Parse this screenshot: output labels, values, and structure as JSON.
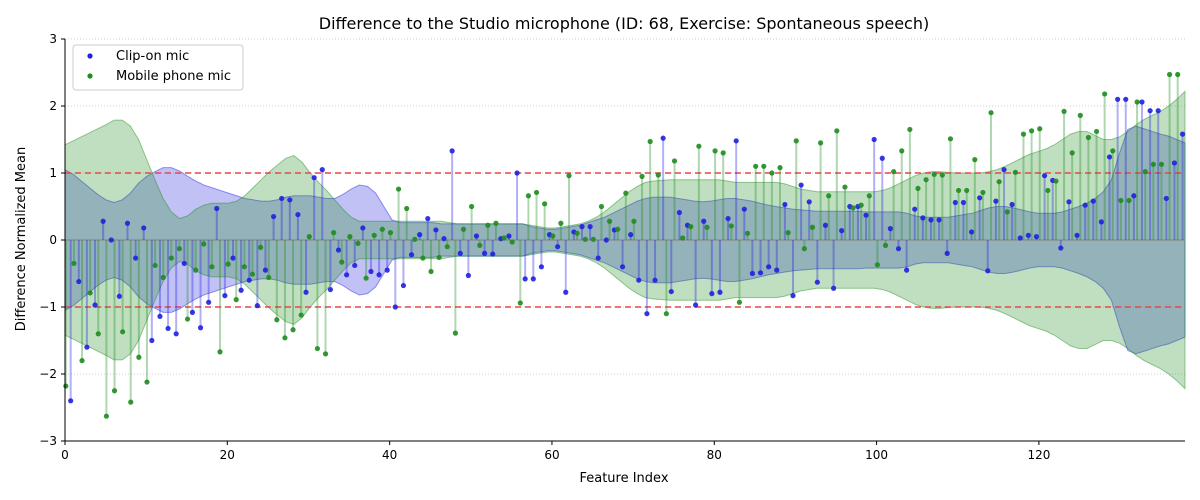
{
  "chart_data": {
    "type": "stem",
    "title": "Difference to the Studio microphone (ID: 68, Exercise: Spontaneous speech)",
    "xlabel": "Feature Index",
    "ylabel": "Difference Normalized Mean",
    "xlim": [
      0,
      138
    ],
    "ylim": [
      -3,
      3
    ],
    "xticks": [
      0,
      20,
      40,
      60,
      80,
      100,
      120
    ],
    "yticks": [
      -3,
      -2,
      -1,
      0,
      1,
      2,
      3
    ],
    "y_grid": true,
    "thresholds": [
      1,
      -1
    ],
    "threshold_color": "#e8474a",
    "legend_position": "upper-left",
    "series": [
      {
        "name": "Clip-on mic",
        "color": "#2020e0",
        "x_start": 0.7,
        "x_step": 1,
        "values": [
          -2.4,
          -0.62,
          -1.6,
          -0.97,
          0.28,
          0.0,
          -0.84,
          0.25,
          -0.27,
          0.18,
          -1.5,
          -1.14,
          -1.32,
          -1.4,
          -0.35,
          -1.08,
          -1.31,
          -0.93,
          0.47,
          -0.83,
          -0.27,
          -0.75,
          -0.6,
          -0.98,
          -0.45,
          0.35,
          0.62,
          0.6,
          0.38,
          -0.78,
          0.93,
          1.05,
          -0.74,
          -0.15,
          -0.52,
          -0.38,
          0.18,
          -0.47,
          -0.52,
          -0.45,
          -1.0,
          -0.68,
          -0.22,
          0.08,
          0.32,
          0.15,
          0.02,
          1.33,
          -0.2,
          -0.53,
          0.06,
          -0.2,
          -0.21,
          0.02,
          0.06,
          1.0,
          -0.58,
          -0.58,
          -0.4,
          0.08,
          -0.1,
          -0.78,
          0.12,
          0.2,
          0.2,
          -0.27,
          0.0,
          0.15,
          -0.4,
          0.08,
          -0.6,
          -1.1,
          -0.6,
          1.52,
          -0.77,
          0.41,
          0.22,
          -0.97,
          0.28,
          -0.8,
          -0.78,
          0.32,
          1.48,
          0.46,
          -0.5,
          -0.49,
          -0.4,
          -0.45,
          0.53,
          -0.83,
          0.82,
          0.57,
          -0.63,
          0.22,
          -0.72,
          0.14,
          0.5,
          0.5,
          0.37,
          1.5,
          1.22,
          0.17,
          -0.13,
          -0.45,
          0.46,
          0.33,
          0.3,
          0.3,
          -0.2,
          0.56,
          0.56,
          0.12,
          0.63,
          -0.46,
          0.58,
          1.05,
          0.53,
          0.03,
          0.07,
          0.05,
          0.96,
          0.89,
          -0.12,
          0.57,
          0.07,
          0.52,
          0.58,
          0.27,
          1.24,
          2.1,
          2.1,
          0.66,
          2.06,
          1.93,
          1.93,
          0.62,
          1.15,
          1.58
        ],
        "band_upper": [
          1.05,
          0.98,
          0.88,
          0.78,
          0.68,
          0.6,
          0.56,
          0.6,
          0.7,
          0.85,
          0.95,
          1.02,
          1.08,
          1.08,
          1.03,
          0.95,
          0.88,
          0.82,
          0.78,
          0.74,
          0.7,
          0.66,
          0.62,
          0.6,
          0.58,
          0.58,
          0.6,
          0.64,
          0.66,
          0.66,
          0.66,
          0.64,
          0.62,
          0.62,
          0.68,
          0.76,
          0.82,
          0.8,
          0.7,
          0.5,
          0.3,
          0.26,
          0.26,
          0.26,
          0.26,
          0.26,
          0.24,
          0.24,
          0.24,
          0.24,
          0.24,
          0.24,
          0.24,
          0.24,
          0.24,
          0.24,
          0.24,
          0.2,
          0.18,
          0.16,
          0.16,
          0.18,
          0.2,
          0.22,
          0.26,
          0.3,
          0.34,
          0.4,
          0.46,
          0.52,
          0.58,
          0.62,
          0.64,
          0.64,
          0.64,
          0.62,
          0.6,
          0.58,
          0.57,
          0.58,
          0.6,
          0.62,
          0.62,
          0.6,
          0.58,
          0.55,
          0.52,
          0.5,
          0.48,
          0.46,
          0.45,
          0.44,
          0.43,
          0.43,
          0.43,
          0.43,
          0.43,
          0.43,
          0.42,
          0.42,
          0.42,
          0.42,
          0.42,
          0.4,
          0.36,
          0.34,
          0.34,
          0.34,
          0.34,
          0.36,
          0.38,
          0.4,
          0.44,
          0.48,
          0.5,
          0.5,
          0.48,
          0.45,
          0.42,
          0.4,
          0.4,
          0.4,
          0.42,
          0.46,
          0.5,
          0.55,
          0.62,
          0.72,
          0.9,
          1.3,
          1.65,
          1.7,
          1.66,
          1.62,
          1.58,
          1.55,
          1.5,
          1.45
        ],
        "band_lower": [
          -1.05,
          -0.98,
          -0.88,
          -0.78,
          -0.68,
          -0.6,
          -0.56,
          -0.6,
          -0.7,
          -0.85,
          -0.95,
          -1.02,
          -1.08,
          -1.08,
          -1.03,
          -0.95,
          -0.88,
          -0.82,
          -0.78,
          -0.74,
          -0.7,
          -0.66,
          -0.62,
          -0.6,
          -0.58,
          -0.58,
          -0.6,
          -0.64,
          -0.66,
          -0.66,
          -0.66,
          -0.64,
          -0.62,
          -0.62,
          -0.68,
          -0.76,
          -0.82,
          -0.8,
          -0.7,
          -0.5,
          -0.3,
          -0.26,
          -0.26,
          -0.26,
          -0.26,
          -0.26,
          -0.24,
          -0.24,
          -0.24,
          -0.24,
          -0.24,
          -0.24,
          -0.24,
          -0.24,
          -0.24,
          -0.24,
          -0.24,
          -0.2,
          -0.18,
          -0.16,
          -0.16,
          -0.18,
          -0.2,
          -0.22,
          -0.26,
          -0.3,
          -0.34,
          -0.4,
          -0.46,
          -0.52,
          -0.58,
          -0.62,
          -0.64,
          -0.64,
          -0.64,
          -0.62,
          -0.6,
          -0.58,
          -0.57,
          -0.58,
          -0.6,
          -0.62,
          -0.62,
          -0.6,
          -0.58,
          -0.55,
          -0.52,
          -0.5,
          -0.48,
          -0.46,
          -0.45,
          -0.44,
          -0.43,
          -0.43,
          -0.43,
          -0.43,
          -0.43,
          -0.43,
          -0.42,
          -0.42,
          -0.42,
          -0.42,
          -0.42,
          -0.4,
          -0.36,
          -0.34,
          -0.34,
          -0.34,
          -0.34,
          -0.36,
          -0.38,
          -0.4,
          -0.44,
          -0.48,
          -0.5,
          -0.5,
          -0.48,
          -0.45,
          -0.42,
          -0.4,
          -0.4,
          -0.4,
          -0.42,
          -0.46,
          -0.5,
          -0.55,
          -0.62,
          -0.72,
          -0.9,
          -1.3,
          -1.65,
          -1.7,
          -1.66,
          -1.62,
          -1.58,
          -1.55,
          -1.5,
          -1.45
        ]
      },
      {
        "name": "Mobile phone mic",
        "color": "#1e8c1e",
        "x_start": 0.1,
        "x_step": 1,
        "values": [
          -2.18,
          -0.35,
          -1.8,
          -0.79,
          -1.4,
          -2.63,
          -2.25,
          -1.37,
          -2.42,
          -1.75,
          -2.12,
          -0.38,
          -0.56,
          -0.27,
          -0.13,
          -1.18,
          -0.45,
          -0.06,
          -0.4,
          -1.67,
          -0.36,
          -0.89,
          -0.4,
          -0.51,
          -0.11,
          -0.56,
          -1.19,
          -1.46,
          -1.34,
          -1.12,
          0.05,
          -1.62,
          -1.7,
          0.11,
          -0.33,
          0.05,
          -0.05,
          -0.57,
          0.07,
          0.16,
          0.11,
          0.76,
          0.47,
          0.01,
          -0.27,
          -0.47,
          -0.26,
          -0.1,
          -1.39,
          0.16,
          0.5,
          -0.08,
          0.22,
          0.25,
          0.03,
          -0.03,
          -0.94,
          0.66,
          0.71,
          0.54,
          0.06,
          0.25,
          0.96,
          0.1,
          0.01,
          0.01,
          0.5,
          0.28,
          0.16,
          0.7,
          0.28,
          0.95,
          1.47,
          0.97,
          -1.1,
          1.18,
          0.03,
          0.2,
          1.4,
          0.19,
          1.33,
          1.3,
          0.21,
          -0.93,
          0.1,
          1.1,
          1.1,
          1.0,
          1.08,
          0.11,
          1.48,
          -0.13,
          0.19,
          1.45,
          0.66,
          1.63,
          0.79,
          0.48,
          0.52,
          0.66,
          -0.37,
          -0.08,
          1.02,
          1.33,
          1.65,
          0.77,
          0.9,
          0.98,
          0.97,
          1.51,
          0.74,
          0.74,
          1.2,
          0.71,
          1.9,
          0.87,
          0.42,
          1.01,
          1.58,
          1.63,
          1.66,
          0.74,
          0.88,
          1.92,
          1.3,
          1.86,
          1.53,
          1.62,
          2.18,
          1.33,
          0.59,
          0.59,
          2.06,
          1.02,
          1.13,
          1.13,
          2.47,
          2.47
        ],
        "band_upper": [
          1.42,
          1.48,
          1.54,
          1.6,
          1.66,
          1.72,
          1.79,
          1.79,
          1.7,
          1.5,
          1.2,
          0.9,
          0.62,
          0.42,
          0.32,
          0.36,
          0.46,
          0.52,
          0.55,
          0.55,
          0.55,
          0.58,
          0.66,
          0.78,
          0.9,
          1.02,
          1.12,
          1.22,
          1.26,
          1.16,
          1.0,
          0.86,
          0.74,
          0.6,
          0.46,
          0.34,
          0.28,
          0.28,
          0.28,
          0.28,
          0.28,
          0.28,
          0.28,
          0.28,
          0.28,
          0.28,
          0.28,
          0.26,
          0.24,
          0.24,
          0.24,
          0.24,
          0.24,
          0.24,
          0.24,
          0.24,
          0.24,
          0.22,
          0.2,
          0.18,
          0.18,
          0.2,
          0.22,
          0.24,
          0.28,
          0.34,
          0.42,
          0.52,
          0.62,
          0.72,
          0.8,
          0.86,
          0.88,
          0.89,
          0.9,
          0.9,
          0.9,
          0.9,
          0.9,
          0.9,
          0.9,
          0.88,
          0.86,
          0.86,
          0.86,
          0.86,
          0.86,
          0.86,
          0.84,
          0.8,
          0.76,
          0.74,
          0.72,
          0.72,
          0.72,
          0.72,
          0.72,
          0.72,
          0.72,
          0.72,
          0.74,
          0.78,
          0.84,
          0.9,
          0.96,
          1.0,
          1.02,
          1.02,
          1.01,
          1.0,
          1.0,
          1.0,
          1.0,
          1.02,
          1.05,
          1.1,
          1.16,
          1.22,
          1.28,
          1.32,
          1.36,
          1.42,
          1.5,
          1.58,
          1.62,
          1.62,
          1.56,
          1.5,
          1.5,
          1.54,
          1.62,
          1.72,
          1.8,
          1.86,
          1.92,
          2.0,
          2.1,
          2.22
        ],
        "band_lower": [
          -1.42,
          -1.48,
          -1.54,
          -1.6,
          -1.66,
          -1.72,
          -1.79,
          -1.79,
          -1.7,
          -1.5,
          -1.2,
          -0.9,
          -0.62,
          -0.42,
          -0.32,
          -0.36,
          -0.46,
          -0.52,
          -0.55,
          -0.55,
          -0.55,
          -0.58,
          -0.66,
          -0.78,
          -0.9,
          -1.02,
          -1.12,
          -1.22,
          -1.26,
          -1.16,
          -1.0,
          -0.86,
          -0.74,
          -0.6,
          -0.46,
          -0.34,
          -0.28,
          -0.28,
          -0.28,
          -0.28,
          -0.28,
          -0.28,
          -0.28,
          -0.28,
          -0.28,
          -0.28,
          -0.28,
          -0.26,
          -0.24,
          -0.24,
          -0.24,
          -0.24,
          -0.24,
          -0.24,
          -0.24,
          -0.24,
          -0.24,
          -0.22,
          -0.2,
          -0.18,
          -0.18,
          -0.2,
          -0.22,
          -0.24,
          -0.28,
          -0.34,
          -0.42,
          -0.52,
          -0.62,
          -0.72,
          -0.8,
          -0.86,
          -0.88,
          -0.89,
          -0.9,
          -0.9,
          -0.9,
          -0.9,
          -0.9,
          -0.9,
          -0.9,
          -0.88,
          -0.86,
          -0.86,
          -0.86,
          -0.86,
          -0.86,
          -0.86,
          -0.84,
          -0.8,
          -0.76,
          -0.74,
          -0.72,
          -0.72,
          -0.72,
          -0.72,
          -0.72,
          -0.72,
          -0.72,
          -0.72,
          -0.74,
          -0.78,
          -0.84,
          -0.9,
          -0.96,
          -1.0,
          -1.02,
          -1.02,
          -1.01,
          -1.0,
          -1.0,
          -1.0,
          -1.0,
          -1.02,
          -1.05,
          -1.1,
          -1.16,
          -1.22,
          -1.28,
          -1.32,
          -1.36,
          -1.42,
          -1.5,
          -1.58,
          -1.62,
          -1.62,
          -1.56,
          -1.5,
          -1.5,
          -1.54,
          -1.62,
          -1.72,
          -1.8,
          -1.86,
          -1.92,
          -2.0,
          -2.1,
          -2.22
        ]
      }
    ]
  }
}
